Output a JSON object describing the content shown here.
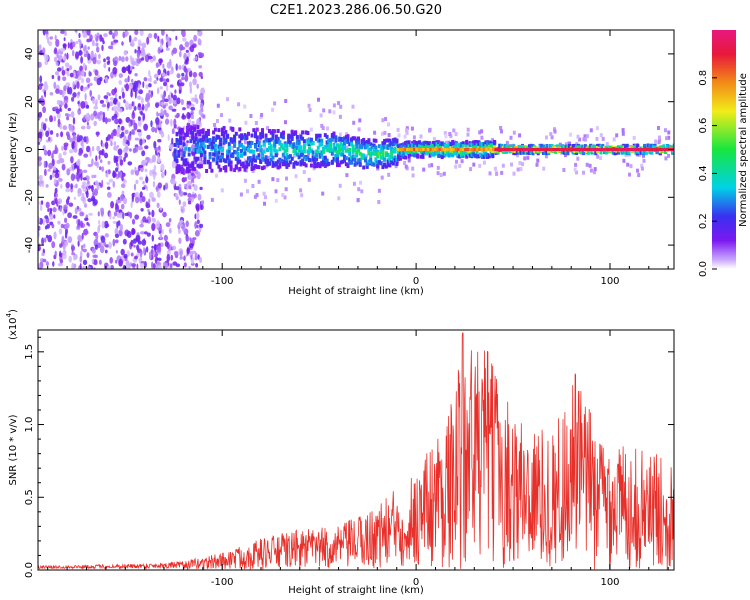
{
  "title": "C2E1.2023.286.06.50.G20",
  "colors": {
    "snr_line": "#e8302a",
    "spectro_background": "#ffffff",
    "colorbar_stops": [
      "#ffffff",
      "#c9a6ff",
      "#7a18f0",
      "#3a30f0",
      "#00d2e6",
      "#17e640",
      "#f2ec18",
      "#f28a18",
      "#e8183a",
      "#e81880"
    ]
  },
  "chart_data": [
    {
      "type": "heatmap",
      "xlabel": "Height of straight line (km)",
      "ylabel": "Frequency (Hz)",
      "xlim": [
        -195,
        133
      ],
      "ylim": [
        -50,
        50
      ],
      "x_ticks": [
        -100,
        0,
        100
      ],
      "y_ticks": [
        -40,
        -20,
        0,
        20,
        40
      ],
      "colorbar": {
        "label": "Normalized spectral amplitude",
        "range": [
          0.0,
          1.0
        ],
        "ticks": [
          "0.0",
          "0.2",
          "0.4",
          "0.6",
          "0.8"
        ]
      },
      "regions": [
        {
          "x_range": [
            -195,
            -120
          ],
          "freq_spread": 50,
          "peak_amplitude": 0.15,
          "description_values": "noise"
        },
        {
          "x_range": [
            -120,
            -10
          ],
          "freq_spread": 10,
          "peak_amplitude": 0.45
        },
        {
          "x_range": [
            -10,
            40
          ],
          "freq_spread": 3,
          "peak_amplitude": 0.8
        },
        {
          "x_range": [
            40,
            133
          ],
          "freq_spread": 1.5,
          "peak_amplitude": 0.95
        }
      ]
    },
    {
      "type": "line",
      "xlabel": "Height of straight line (km)",
      "ylabel": "SNR (10 * v/v)",
      "y_scale_label": "(x10",
      "y_scale_exp": "4",
      "y_scale_close": ")",
      "xlim": [
        -195,
        133
      ],
      "ylim": [
        0,
        1.65
      ],
      "x_ticks": [
        -100,
        0,
        100
      ],
      "y_ticks": [
        "0.0",
        "0.5",
        "1.0",
        "1.5"
      ],
      "y_tick_values": [
        0.0,
        0.5,
        1.0,
        1.5
      ],
      "series": [
        {
          "envelope": [
            {
              "x": -195,
              "y": 0.03
            },
            {
              "x": -150,
              "y": 0.04
            },
            {
              "x": -120,
              "y": 0.06
            },
            {
              "x": -100,
              "y": 0.12
            },
            {
              "x": -80,
              "y": 0.22
            },
            {
              "x": -60,
              "y": 0.28
            },
            {
              "x": -40,
              "y": 0.3
            },
            {
              "x": -20,
              "y": 0.45
            },
            {
              "x": 0,
              "y": 0.7
            },
            {
              "x": 10,
              "y": 0.95
            },
            {
              "x": 20,
              "y": 1.2
            },
            {
              "x": 24,
              "y": 1.63
            },
            {
              "x": 37,
              "y": 1.5
            },
            {
              "x": 50,
              "y": 1.1
            },
            {
              "x": 60,
              "y": 1.0
            },
            {
              "x": 70,
              "y": 0.95
            },
            {
              "x": 82,
              "y": 1.35
            },
            {
              "x": 95,
              "y": 0.95
            },
            {
              "x": 110,
              "y": 0.85
            },
            {
              "x": 125,
              "y": 0.8
            },
            {
              "x": 133,
              "y": 0.75
            }
          ]
        }
      ]
    }
  ]
}
